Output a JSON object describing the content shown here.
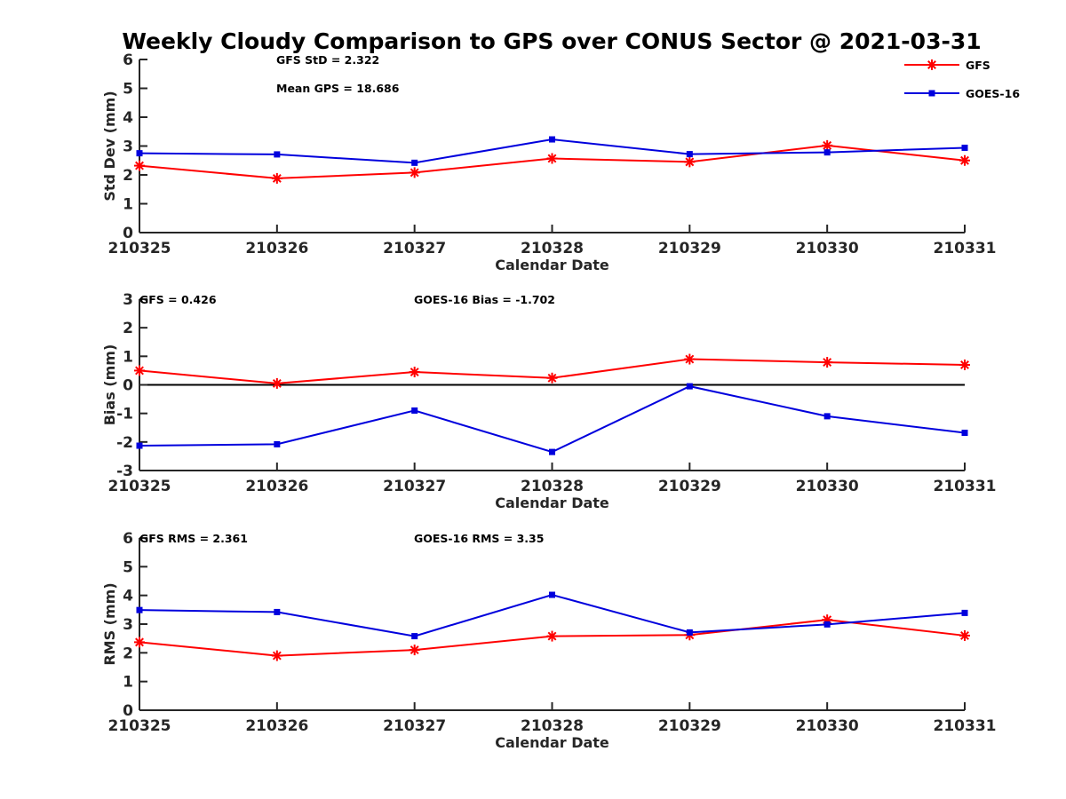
{
  "title": "Weekly Cloudy Comparison to GPS over CONUS Sector @ 2021-03-31",
  "colors": {
    "GFS": "#ff0000",
    "GOES-16": "#0000dd",
    "axis": "#262626"
  },
  "legend": {
    "placement": "top-right of first panel",
    "entries": [
      "GFS",
      "GOES-16"
    ]
  },
  "chart_data": [
    {
      "type": "line",
      "xlabel": "Calendar Date",
      "ylabel": "Std Dev (mm)",
      "categories": [
        "210325",
        "210326",
        "210327",
        "210328",
        "210329",
        "210330",
        "210331"
      ],
      "ylim": [
        0,
        6
      ],
      "yticks": [
        "0",
        "1",
        "2",
        "3",
        "4",
        "5",
        "6"
      ],
      "series": [
        {
          "name": "GFS",
          "marker": "asterisk",
          "values": [
            2.32,
            1.88,
            2.08,
            2.57,
            2.45,
            3.02,
            2.5
          ]
        },
        {
          "name": "GOES-16",
          "marker": "square",
          "values": [
            2.75,
            2.71,
            2.42,
            3.23,
            2.72,
            2.78,
            2.94
          ]
        }
      ],
      "annotations": [
        "GFS StD = 2.322",
        "Mean GPS = 18.686"
      ],
      "grid": false
    },
    {
      "type": "line",
      "xlabel": "Calendar Date",
      "ylabel": "Bias (mm)",
      "categories": [
        "210325",
        "210326",
        "210327",
        "210328",
        "210329",
        "210330",
        "210331"
      ],
      "ylim": [
        -3,
        3
      ],
      "yticks": [
        "-3",
        "-2",
        "-1",
        "0",
        "1",
        "2",
        "3"
      ],
      "zero_line": true,
      "series": [
        {
          "name": "GFS",
          "marker": "asterisk",
          "values": [
            0.5,
            0.05,
            0.45,
            0.24,
            0.9,
            0.79,
            0.7
          ]
        },
        {
          "name": "GOES-16",
          "marker": "square",
          "values": [
            -2.13,
            -2.08,
            -0.9,
            -2.35,
            -0.05,
            -1.1,
            -1.68
          ]
        }
      ],
      "annotations": [
        "GFS = 0.426",
        "GOES-16 Bias  = -1.702"
      ],
      "grid": false
    },
    {
      "type": "line",
      "xlabel": "Calendar Date",
      "ylabel": "RMS (mm)",
      "categories": [
        "210325",
        "210326",
        "210327",
        "210328",
        "210329",
        "210330",
        "210331"
      ],
      "ylim": [
        0,
        6
      ],
      "yticks": [
        "0",
        "1",
        "2",
        "3",
        "4",
        "5",
        "6"
      ],
      "series": [
        {
          "name": "GFS",
          "marker": "asterisk",
          "values": [
            2.37,
            1.9,
            2.1,
            2.58,
            2.62,
            3.15,
            2.6
          ]
        },
        {
          "name": "GOES-16",
          "marker": "square",
          "values": [
            3.49,
            3.42,
            2.58,
            4.02,
            2.71,
            2.99,
            3.39
          ]
        }
      ],
      "annotations": [
        "GFS RMS = 2.361",
        "GOES-16 RMS = 3.35"
      ],
      "grid": false
    }
  ]
}
